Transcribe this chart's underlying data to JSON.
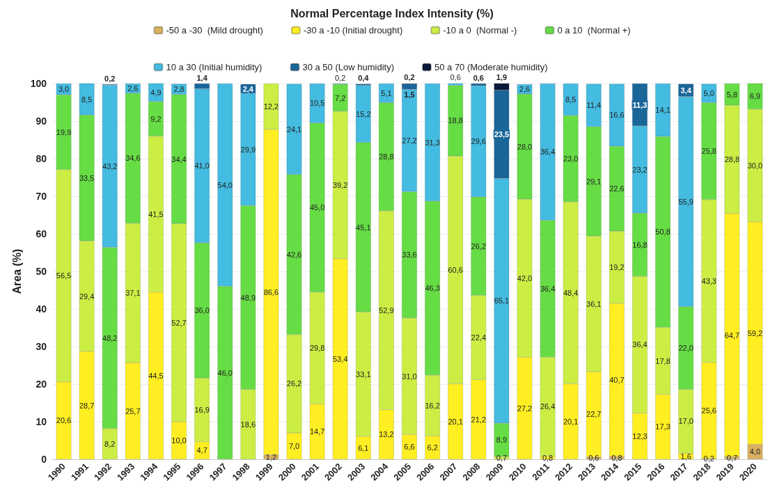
{
  "chart_data": {
    "type": "bar",
    "title": "Normal Percentage Index Intensity (%)",
    "ylabel": "Area (%)",
    "categories": [
      "1990",
      "1991",
      "1992",
      "1993",
      "1994",
      "1995",
      "1996",
      "1997",
      "1998",
      "1999",
      "2000",
      "2001",
      "2002",
      "2003",
      "2004",
      "2005",
      "2006",
      "2007",
      "2008",
      "2009",
      "2010",
      "2011",
      "2012",
      "2013",
      "2014",
      "2015",
      "2016",
      "2017",
      "2018",
      "2019",
      "2020"
    ],
    "stacked": true,
    "ylim": [
      0,
      100
    ],
    "yticks": [
      0,
      10,
      20,
      30,
      40,
      50,
      60,
      70,
      80,
      90,
      100
    ],
    "grid": "y",
    "legend": "top",
    "series": [
      {
        "name": "-50 a -30  (Mild drought)",
        "color": "#d8b060",
        "values": [
          null,
          null,
          null,
          null,
          null,
          null,
          null,
          null,
          null,
          1.2,
          null,
          null,
          null,
          null,
          null,
          null,
          null,
          null,
          null,
          null,
          null,
          null,
          null,
          0.6,
          0.8,
          null,
          null,
          null,
          0.2,
          0.7,
          4.0
        ],
        "value_labels": [
          null,
          null,
          null,
          null,
          null,
          null,
          null,
          null,
          null,
          "1,2",
          null,
          null,
          null,
          null,
          null,
          null,
          null,
          null,
          null,
          null,
          null,
          null,
          null,
          "0,6",
          "0,8",
          null,
          null,
          null,
          "0,2",
          "0,7",
          "4,0"
        ]
      },
      {
        "name": "-30 a -10 (Initial drought)",
        "color": "#ffee22",
        "values": [
          20.6,
          28.7,
          null,
          25.7,
          44.5,
          10.0,
          4.7,
          null,
          null,
          86.6,
          7.0,
          14.7,
          53.4,
          6.1,
          13.2,
          6.6,
          6.2,
          20.1,
          21.2,
          null,
          27.2,
          0.8,
          20.1,
          22.7,
          40.7,
          12.3,
          17.3,
          1.6,
          25.6,
          64.7,
          59.2
        ],
        "value_labels": [
          "20,6",
          "28,7",
          null,
          "25,7",
          "44,5",
          "10,0",
          "4,7",
          null,
          null,
          "86,6",
          "7,0",
          "14,7",
          "53,4",
          "6,1",
          "13,2",
          "6,6",
          "6,2",
          "20,1",
          "21,2",
          null,
          "27,2",
          "0,8",
          "20,1",
          "22,7",
          "40,7",
          "12,3",
          "17,3",
          "1,6",
          "25,6",
          "64,7",
          "59,2"
        ]
      },
      {
        "name": "-10 a 0  (Normal -)",
        "color": "#ccee44",
        "values": [
          56.5,
          29.4,
          8.2,
          37.1,
          41.5,
          52.7,
          16.9,
          null,
          18.6,
          12.2,
          26.2,
          29.8,
          39.2,
          33.1,
          52.9,
          31.0,
          16.2,
          60.6,
          22.4,
          0.7,
          42.0,
          26.4,
          48.4,
          36.1,
          19.2,
          36.4,
          17.8,
          17.0,
          43.3,
          28.8,
          30.0
        ],
        "value_labels": [
          "56,5",
          "29,4",
          "8,2",
          "37,1",
          "41,5",
          "52,7",
          "16,9",
          null,
          "18,6",
          "12,2",
          "26,2",
          "29,8",
          "39,2",
          "33,1",
          "52,9",
          "31,0",
          "16,2",
          "60,6",
          "22,4",
          "0,7",
          "42,0",
          "26,4",
          "48,4",
          "36,1",
          "19,2",
          "36,4",
          "17,8",
          "17,0",
          "43,3",
          "28,8",
          "30,0"
        ]
      },
      {
        "name": "0 a 10  (Normal +)",
        "color": "#66dd44",
        "values": [
          19.9,
          33.5,
          48.2,
          34.6,
          9.2,
          34.4,
          36.0,
          46.0,
          48.9,
          null,
          42.6,
          45.0,
          7.2,
          45.1,
          28.8,
          33.6,
          46.3,
          18.8,
          26.2,
          8.9,
          28.0,
          36.4,
          23.0,
          29.1,
          22.6,
          16.8,
          50.8,
          22.0,
          25.8,
          5.8,
          6.9
        ],
        "value_labels": [
          "19,9",
          "33,5",
          "48,2",
          "34,6",
          "9,2",
          "34,4",
          "36,0",
          "46,0",
          "48,9",
          null,
          "42,6",
          "45,0",
          "7,2",
          "45,1",
          "28,8",
          "33,6",
          "46,3",
          "18,8",
          "26,2",
          "8,9",
          "28,0",
          "36,4",
          "23,0",
          "29,1",
          "22,6",
          "16,8",
          "50,8",
          "22,0",
          "25,8",
          "5,8",
          "6,9"
        ]
      },
      {
        "name": "10 a 30 (Initial humidity)",
        "color": "#44bbe0",
        "values": [
          3.0,
          8.5,
          43.2,
          2.6,
          4.9,
          2.8,
          41.0,
          54.0,
          29.9,
          null,
          24.1,
          10.5,
          0.2,
          15.2,
          5.1,
          27.2,
          31.3,
          0.6,
          29.6,
          65.1,
          2.6,
          36.4,
          8.5,
          11.4,
          16.6,
          23.2,
          14.1,
          55.9,
          5.0,
          null,
          null
        ],
        "value_labels": [
          "3,0",
          "8,5",
          "43,2",
          "2,6",
          "4,9",
          "2,8",
          "41,0",
          "54,0",
          "29,9",
          null,
          "24,1",
          "10,5",
          "0,2",
          "15,2",
          "5,1",
          "27,2",
          "31,3",
          "0,6",
          "29,6",
          "65,1",
          "2,6",
          "36,4",
          "8,5",
          "11,4",
          "16,6",
          "23,2",
          "14,1",
          "55,9",
          "5,0",
          null,
          null
        ]
      },
      {
        "name": "30 a 50 (Low humidity)",
        "color": "#1a6699",
        "values": [
          null,
          null,
          0.2,
          null,
          null,
          null,
          1.4,
          null,
          2.4,
          null,
          null,
          null,
          null,
          0.4,
          null,
          1.5,
          null,
          null,
          0.6,
          23.5,
          null,
          null,
          null,
          null,
          null,
          11.3,
          null,
          3.4,
          null,
          null,
          null
        ],
        "value_labels": [
          null,
          null,
          "0,2",
          null,
          null,
          null,
          "1,4",
          null,
          "2,4",
          null,
          null,
          null,
          null,
          "0,4",
          null,
          "1,5",
          null,
          null,
          "0,6",
          "23,5",
          null,
          null,
          null,
          null,
          null,
          "11,3",
          null,
          "3,4",
          null,
          null,
          null
        ]
      },
      {
        "name": "50 a 70 (Moderate humidity)",
        "color": "#0a1a3a",
        "values": [
          null,
          null,
          null,
          null,
          null,
          null,
          null,
          null,
          null,
          null,
          null,
          null,
          null,
          null,
          null,
          0.2,
          null,
          null,
          null,
          1.9,
          null,
          null,
          null,
          null,
          null,
          null,
          null,
          null,
          null,
          null,
          null
        ],
        "value_labels": [
          null,
          null,
          null,
          null,
          null,
          null,
          null,
          null,
          null,
          null,
          null,
          null,
          null,
          null,
          null,
          "0,2",
          null,
          null,
          null,
          "1,9",
          null,
          null,
          null,
          null,
          null,
          null,
          null,
          null,
          null,
          null,
          null
        ]
      }
    ]
  }
}
